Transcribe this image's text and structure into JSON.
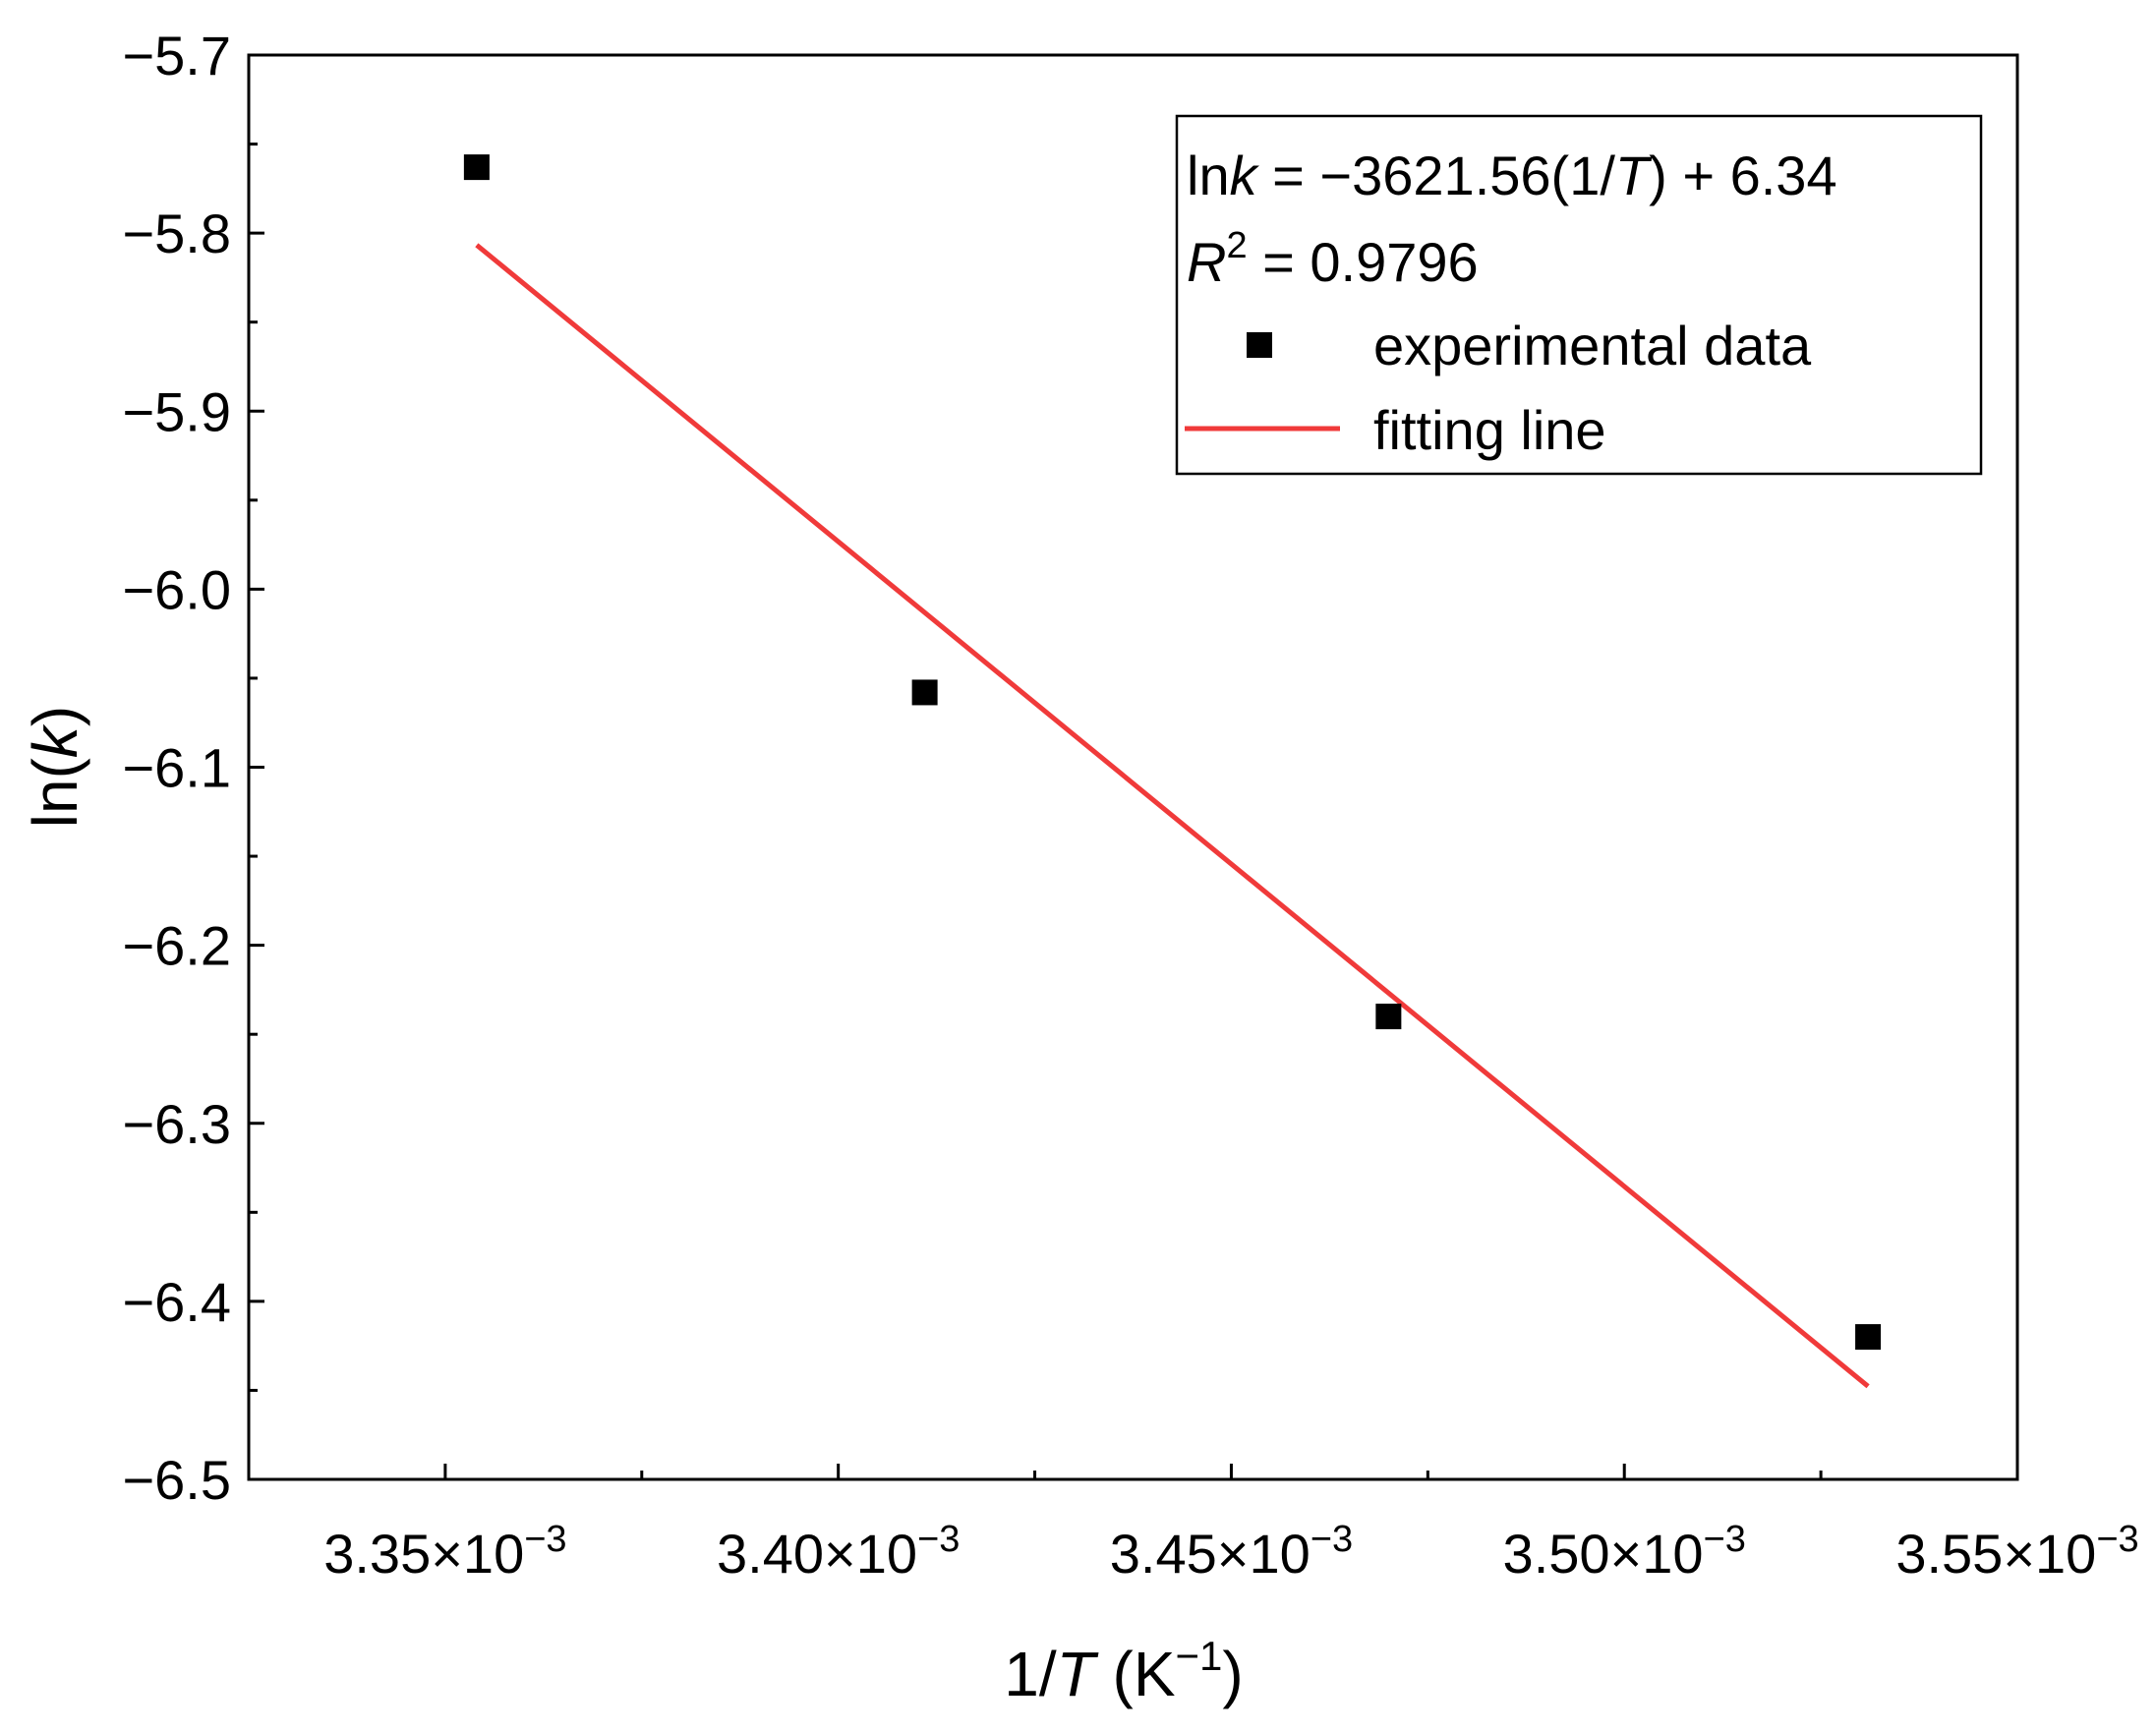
{
  "chart_data": {
    "type": "scatter",
    "title": "",
    "xlabel": {
      "prefix": "1/",
      "italic": "T",
      "unit_open": " (K",
      "unit_sup": "−1",
      "unit_close": ")"
    },
    "ylabel": {
      "prefix": "ln(",
      "italic": "k",
      "suffix": ")"
    },
    "xlim": [
      0.003325,
      0.00355
    ],
    "ylim": [
      -6.5,
      -5.7
    ],
    "grid": false,
    "x_ticks": [
      {
        "value": 0.00335,
        "mantissa": "3.35",
        "times": "×10",
        "exponent": "−3"
      },
      {
        "value": 0.0034,
        "mantissa": "3.40",
        "times": "×10",
        "exponent": "−3"
      },
      {
        "value": 0.00345,
        "mantissa": "3.45",
        "times": "×10",
        "exponent": "−3"
      },
      {
        "value": 0.0035,
        "mantissa": "3.50",
        "times": "×10",
        "exponent": "−3"
      },
      {
        "value": 0.00355,
        "mantissa": "3.55",
        "times": "×10",
        "exponent": "−3"
      }
    ],
    "y_ticks": [
      {
        "value": -5.7,
        "label": "−5.7"
      },
      {
        "value": -5.8,
        "label": "−5.8"
      },
      {
        "value": -5.9,
        "label": "−5.9"
      },
      {
        "value": -6.0,
        "label": "−6.0"
      },
      {
        "value": -6.1,
        "label": "−6.1"
      },
      {
        "value": -6.2,
        "label": "−6.2"
      },
      {
        "value": -6.3,
        "label": "−6.3"
      },
      {
        "value": -6.4,
        "label": "−6.4"
      },
      {
        "value": -6.5,
        "label": "−6.5"
      }
    ],
    "series": [
      {
        "name": "experimental data",
        "marker": "square",
        "color": "#000000",
        "x": [
          0.003354,
          0.003411,
          0.00347,
          0.003531
        ],
        "y": [
          -5.763,
          -6.058,
          -6.24,
          -6.42
        ]
      }
    ],
    "fit_line": {
      "name": "fitting line",
      "color": "#f03a3a",
      "slope": -3621.56,
      "intercept": 6.34,
      "x_range": [
        0.003354,
        0.003531
      ]
    },
    "legend": {
      "placement": "top-right",
      "equation": {
        "ln": "ln",
        "k": "k",
        "mid": " = −3621.56(1/",
        "T": "T",
        "end": ") + 6.34"
      },
      "r2": {
        "R": "R",
        "sup": "2",
        "rest": " = 0.9796"
      }
    }
  }
}
